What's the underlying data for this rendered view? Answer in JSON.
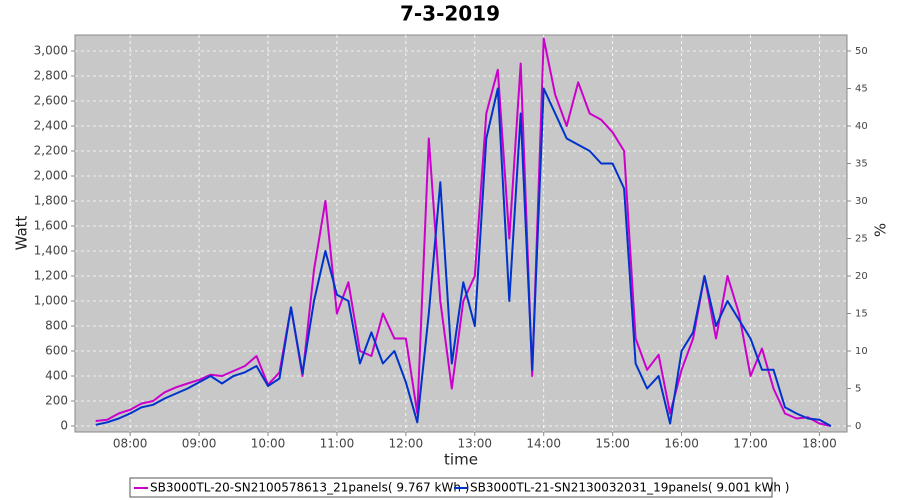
{
  "chart_data": {
    "type": "line",
    "title": "7-3-2019",
    "x_label": "time",
    "y_label": "Watt",
    "y2_label": "%",
    "x": [
      450,
      460,
      470,
      480,
      490,
      500,
      510,
      520,
      530,
      540,
      550,
      560,
      570,
      580,
      590,
      600,
      610,
      620,
      630,
      640,
      650,
      660,
      670,
      680,
      690,
      700,
      710,
      720,
      730,
      740,
      750,
      760,
      770,
      780,
      790,
      800,
      810,
      820,
      830,
      840,
      850,
      860,
      870,
      880,
      890,
      900,
      910,
      920,
      930,
      940,
      950,
      960,
      970,
      980,
      990,
      1000,
      1010,
      1020,
      1030,
      1040,
      1050,
      1060,
      1070,
      1080,
      1090
    ],
    "series": [
      {
        "name": "SB3000TL-20-SN2100578613_21panels( 9.767 kWh )",
        "color": "#cc00cc",
        "values": [
          40,
          50,
          100,
          130,
          180,
          200,
          270,
          310,
          340,
          370,
          410,
          400,
          440,
          480,
          560,
          330,
          430,
          950,
          400,
          1250,
          1800,
          900,
          1150,
          600,
          560,
          900,
          700,
          700,
          100,
          2300,
          1000,
          300,
          1000,
          1200,
          2500,
          2850,
          1500,
          2900,
          400,
          3100,
          2650,
          2400,
          2750,
          2500,
          2450,
          2350,
          2200,
          700,
          450,
          570,
          100,
          450,
          700,
          1200,
          700,
          1200,
          900,
          400,
          620,
          300,
          100,
          60,
          70,
          20,
          0
        ]
      },
      {
        "name": "SB3000TL-21-SN2130032031_19panels( 9.001 kWh )",
        "color": "#0033cc",
        "values": [
          10,
          30,
          60,
          100,
          150,
          170,
          220,
          260,
          300,
          350,
          400,
          340,
          400,
          430,
          480,
          320,
          380,
          950,
          420,
          1000,
          1400,
          1050,
          1000,
          500,
          750,
          500,
          600,
          350,
          30,
          900,
          1950,
          500,
          1150,
          800,
          2300,
          2700,
          1000,
          2500,
          450,
          2700,
          2500,
          2300,
          2250,
          2200,
          2100,
          2100,
          1900,
          500,
          300,
          400,
          20,
          600,
          750,
          1200,
          800,
          1000,
          850,
          700,
          450,
          450,
          150,
          100,
          60,
          50,
          0
        ]
      }
    ],
    "xlim": [
      432,
      1104
    ],
    "xticks": [
      {
        "value": 480,
        "label": "08:00"
      },
      {
        "value": 540,
        "label": "09:00"
      },
      {
        "value": 600,
        "label": "10:00"
      },
      {
        "value": 660,
        "label": "11:00"
      },
      {
        "value": 720,
        "label": "12:00"
      },
      {
        "value": 780,
        "label": "13:00"
      },
      {
        "value": 840,
        "label": "14:00"
      },
      {
        "value": 900,
        "label": "15:00"
      },
      {
        "value": 960,
        "label": "16:00"
      },
      {
        "value": 1020,
        "label": "17:00"
      },
      {
        "value": 1080,
        "label": "18:00"
      }
    ],
    "ylim": [
      -48,
      3128
    ],
    "yticks": [
      0,
      200,
      400,
      600,
      800,
      {
        "value": 1000,
        "label": "1,000"
      },
      {
        "value": 1200,
        "label": "1,200"
      },
      {
        "value": 1400,
        "label": "1,400"
      },
      {
        "value": 1600,
        "label": "1,600"
      },
      {
        "value": 1800,
        "label": "1,800"
      },
      {
        "value": 2000,
        "label": "2,000"
      },
      {
        "value": 2200,
        "label": "2,200"
      },
      {
        "value": 2400,
        "label": "2,400"
      },
      {
        "value": 2600,
        "label": "2,600"
      },
      {
        "value": 2800,
        "label": "2,800"
      },
      {
        "value": 3000,
        "label": "3,000"
      }
    ],
    "y2lim": [
      -0.8,
      52.13
    ],
    "y2ticks": [
      0,
      5,
      10,
      15,
      20,
      25,
      30,
      35,
      40,
      45,
      50
    ],
    "grid": true
  }
}
